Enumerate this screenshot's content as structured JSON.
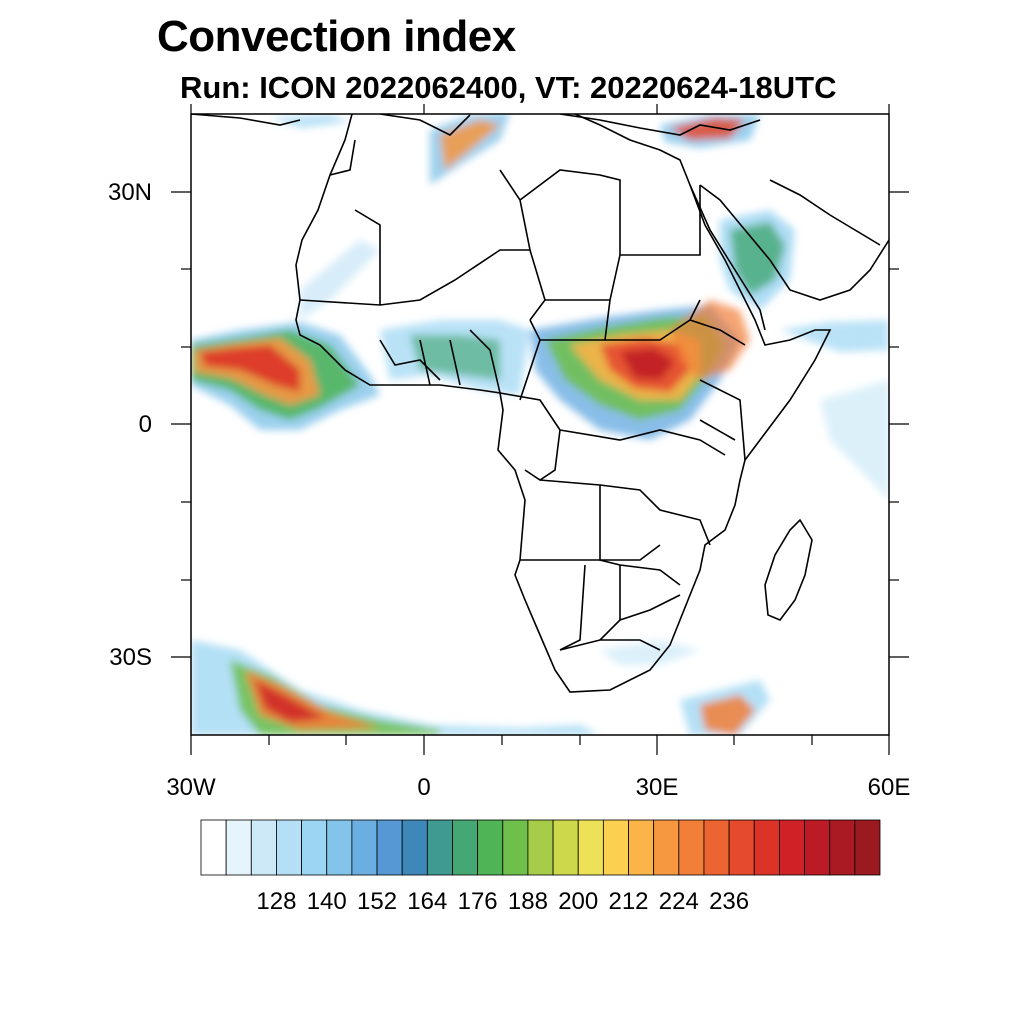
{
  "title": "Convection index",
  "subtitle": "Run: ICON 2022062400,  VT: 20220624-18UTC",
  "map": {
    "lat_labels": [
      "30N",
      "0",
      "30S"
    ],
    "lon_labels": [
      "30W",
      "0",
      "30E",
      "60E"
    ],
    "extent": {
      "lon_min": -30,
      "lon_max": 60,
      "lat_min": -40,
      "lat_max": 40
    }
  },
  "colorbar": {
    "labels": [
      "128",
      "140",
      "152",
      "164",
      "176",
      "188",
      "200",
      "212",
      "224",
      "236"
    ],
    "colors": [
      "#ffffff",
      "#e6f4fc",
      "#cde9f8",
      "#b4dff6",
      "#9bd5f3",
      "#83c4ea",
      "#6aaee2",
      "#5598d3",
      "#3d88b8",
      "#3f9b92",
      "#45a874",
      "#4eb456",
      "#6fbf4b",
      "#a6cc4a",
      "#cdd84b",
      "#ede257",
      "#fbcf50",
      "#fab448",
      "#f69840",
      "#f27f37",
      "#ec6432",
      "#e54a2d",
      "#dc3329",
      "#cf2227",
      "#bc1b25",
      "#a91a22",
      "#9a1a1f"
    ]
  }
}
